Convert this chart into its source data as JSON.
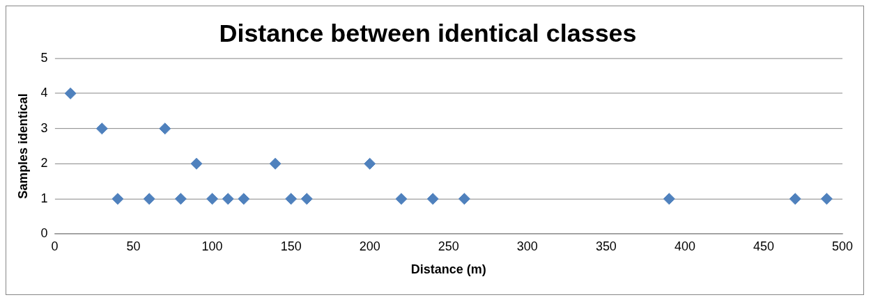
{
  "chart_data": {
    "type": "scatter",
    "title": "Distance between identical classes",
    "xlabel": "Distance (m)",
    "ylabel": "Samples identical",
    "x": [
      10,
      30,
      40,
      60,
      70,
      80,
      90,
      100,
      110,
      120,
      140,
      150,
      160,
      200,
      220,
      240,
      260,
      390,
      470,
      490
    ],
    "values": [
      4,
      3,
      1,
      1,
      3,
      1,
      2,
      1,
      1,
      1,
      2,
      1,
      1,
      2,
      1,
      1,
      1,
      1,
      1,
      1
    ],
    "color": "#4f81bd",
    "marker": "diamond",
    "grid": "y",
    "legend": false,
    "xlim": [
      0,
      500
    ],
    "xticks": [
      0,
      50,
      100,
      150,
      200,
      250,
      300,
      350,
      400,
      450,
      500
    ],
    "ylim": [
      0,
      5
    ],
    "yticks": [
      0,
      1,
      2,
      3,
      4,
      5
    ]
  }
}
